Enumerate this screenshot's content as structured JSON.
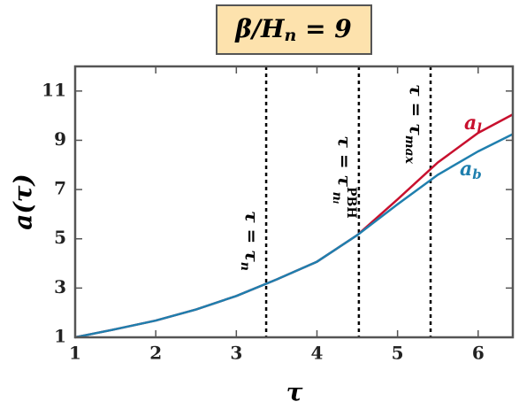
{
  "chart_data": {
    "type": "line",
    "title": {
      "main": "β/H",
      "sub": "n",
      "rest": " = 9"
    },
    "xlabel": "τ",
    "ylabel": "a(τ)",
    "x": [
      1,
      1.5,
      2,
      2.5,
      3,
      3.5,
      4,
      4.5,
      5,
      5.5,
      6,
      6.43
    ],
    "series": [
      {
        "name": "a",
        "name_sub": "l",
        "color": "#c8102e",
        "values": [
          1,
          1.33,
          1.68,
          2.13,
          2.68,
          3.35,
          4.07,
          5.15,
          6.6,
          8.1,
          9.3,
          10.05
        ]
      },
      {
        "name": "a",
        "name_sub": "b",
        "color": "#1f7fae",
        "values": [
          1,
          1.33,
          1.68,
          2.13,
          2.68,
          3.35,
          4.07,
          5.15,
          6.4,
          7.6,
          8.55,
          9.25
        ]
      }
    ],
    "vlines": [
      {
        "x": 3.37,
        "label": "τ = τ",
        "sub": "n"
      },
      {
        "x": 4.52,
        "label": "τ = τ",
        "sub": "nᵢ",
        "sup": "PBH"
      },
      {
        "x": 5.41,
        "label": "τ = τ",
        "sub": "max"
      }
    ],
    "xlim": [
      1,
      6.43
    ],
    "xticks": [
      1,
      2,
      3,
      4,
      5,
      6
    ],
    "ylim": [
      1,
      12
    ],
    "yticks": [
      1,
      3,
      5,
      7,
      9,
      11
    ]
  }
}
